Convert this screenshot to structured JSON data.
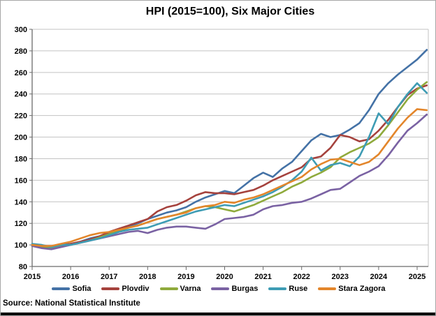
{
  "title": "HPI (2015=100), Six Major Cities",
  "source": "Source: National Statistical Institute",
  "chart_data": {
    "type": "line",
    "title": "HPI (2015=100), Six Major Cities",
    "xlabel": "",
    "ylabel": "",
    "x_start": 2015,
    "x_step_years": 0.25,
    "x_tick_labels": [
      "2015",
      "2016",
      "2017",
      "2018",
      "2019",
      "2020",
      "2021",
      "2022",
      "2023",
      "2024",
      "2025"
    ],
    "y_ticks": [
      300,
      280,
      260,
      240,
      220,
      200,
      180,
      160,
      140,
      120,
      100,
      80
    ],
    "ylim": [
      80,
      300
    ],
    "xlim": [
      2015,
      2025.3
    ],
    "grid": "horizontal-only",
    "legend_position": "bottom",
    "axis_color": "#6b6b6b",
    "grid_color": "#c3c3c3",
    "series": [
      {
        "name": "Sofia",
        "color": "#4472a6",
        "values": [
          100,
          99,
          98,
          100,
          101,
          103,
          106,
          108,
          111,
          114,
          117,
          120,
          124,
          127,
          130,
          132,
          135,
          140,
          144,
          147,
          150,
          148,
          155,
          162,
          167,
          163,
          171,
          177,
          187,
          197,
          203,
          200,
          202,
          207,
          213,
          225,
          240,
          250,
          258,
          265,
          272,
          281
        ]
      },
      {
        "name": "Plovdiv",
        "color": "#a5423d",
        "values": [
          100,
          98,
          97,
          99,
          101,
          103,
          105,
          108,
          112,
          115,
          118,
          121,
          124,
          131,
          135,
          137,
          141,
          146,
          149,
          148,
          148,
          147,
          149,
          151,
          155,
          160,
          164,
          168,
          172,
          180,
          182,
          190,
          202,
          200,
          196,
          198,
          206,
          216,
          228,
          239,
          245,
          248
        ]
      },
      {
        "name": "Varna",
        "color": "#8faa3c",
        "values": [
          99,
          98,
          97,
          99,
          100,
          102,
          104,
          107,
          110,
          113,
          116,
          118,
          121,
          124,
          126,
          128,
          131,
          134,
          136,
          135,
          133,
          131,
          134,
          137,
          141,
          145,
          149,
          154,
          158,
          163,
          167,
          172,
          181,
          186,
          190,
          194,
          200,
          211,
          223,
          235,
          244,
          251
        ]
      },
      {
        "name": "Burgas",
        "color": "#7a62a3",
        "values": [
          99,
          97,
          96,
          98,
          100,
          102,
          104,
          106,
          108,
          110,
          112,
          113,
          111,
          114,
          116,
          117,
          117,
          116,
          115,
          119,
          124,
          125,
          126,
          128,
          133,
          136,
          137,
          139,
          140,
          143,
          147,
          151,
          152,
          158,
          164,
          168,
          173,
          183,
          195,
          206,
          213,
          221
        ]
      },
      {
        "name": "Ruse",
        "color": "#3e9cb4",
        "values": [
          101,
          100,
          98,
          100,
          100,
          102,
          104,
          106,
          109,
          112,
          114,
          115,
          116,
          119,
          122,
          125,
          128,
          131,
          133,
          135,
          137,
          136,
          139,
          142,
          145,
          149,
          154,
          160,
          168,
          181,
          169,
          174,
          176,
          173,
          182,
          200,
          222,
          212,
          228,
          240,
          250,
          241
        ]
      },
      {
        "name": "Stara Zagora",
        "color": "#e3862b",
        "values": [
          100,
          99,
          99,
          101,
          103,
          106,
          109,
          111,
          112,
          114,
          116,
          118,
          121,
          124,
          126,
          128,
          130,
          134,
          136,
          137,
          140,
          139,
          142,
          144,
          147,
          151,
          155,
          159,
          163,
          170,
          175,
          179,
          180,
          177,
          174,
          177,
          184,
          196,
          208,
          218,
          226,
          225
        ]
      }
    ]
  }
}
